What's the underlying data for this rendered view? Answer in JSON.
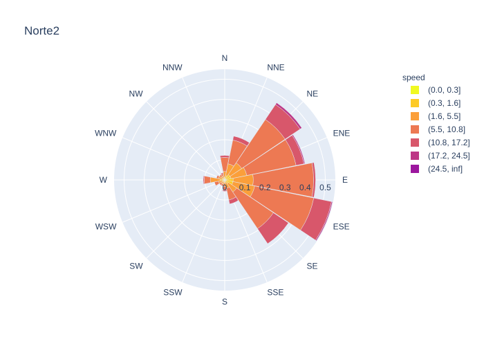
{
  "chart_data": {
    "type": "barpolar",
    "title": "Norte2",
    "directions": [
      "N",
      "NNE",
      "NE",
      "ENE",
      "E",
      "ESE",
      "SE",
      "SSE",
      "S",
      "SSW",
      "SW",
      "WSW",
      "W",
      "WNW",
      "NW",
      "NNW"
    ],
    "radial_ticks": [
      "0",
      "0.1",
      "0.2",
      "0.3",
      "0.4",
      "0.5"
    ],
    "radial_range": [
      0,
      0.55
    ],
    "legend_title": "speed",
    "legend_placement": "top-right",
    "series": [
      {
        "name": "(0.0, 0.3]",
        "color": "#f0f921",
        "values": [
          0.002,
          0.002,
          0.002,
          0.002,
          0.002,
          0.002,
          0.002,
          0.002,
          0.002,
          0.002,
          0.002,
          0.002,
          0.002,
          0.002,
          0.002,
          0.002
        ]
      },
      {
        "name": "(0.3, 1.6]",
        "color": "#fdca26",
        "values": [
          0.01,
          0.02,
          0.03,
          0.03,
          0.04,
          0.04,
          0.02,
          0.01,
          0.01,
          0.01,
          0.01,
          0.01,
          0.02,
          0.01,
          0.01,
          0.01
        ]
      },
      {
        "name": "(1.6, 5.5]",
        "color": "#fb9f3a",
        "values": [
          0.03,
          0.06,
          0.07,
          0.08,
          0.1,
          0.11,
          0.05,
          0.03,
          0.02,
          0.01,
          0.01,
          0.02,
          0.05,
          0.02,
          0.01,
          0.01
        ]
      },
      {
        "name": "(5.5, 10.8]",
        "color": "#ed7953",
        "values": [
          0.07,
          0.12,
          0.26,
          0.25,
          0.3,
          0.3,
          0.22,
          0.06,
          0.02,
          0.01,
          0.01,
          0.02,
          0.03,
          0.01,
          0.01,
          0.01
        ]
      },
      {
        "name": "(10.8, 17.2]",
        "color": "#d8576b",
        "values": [
          0.01,
          0.02,
          0.09,
          0.04,
          0.01,
          0.09,
          0.09,
          0.02,
          0.005,
          0,
          0,
          0,
          0.005,
          0,
          0,
          0.005
        ]
      },
      {
        "name": "(17.2, 24.5]",
        "color": "#bd3786",
        "values": [
          0,
          0,
          0.01,
          0.005,
          0,
          0.005,
          0,
          0,
          0,
          0,
          0,
          0,
          0,
          0,
          0,
          0
        ]
      },
      {
        "name": "(24.5, inf]",
        "color": "#9c179e",
        "values": [
          0,
          0,
          0,
          0,
          0,
          0,
          0,
          0,
          0,
          0,
          0,
          0,
          0,
          0,
          0,
          0
        ]
      }
    ]
  }
}
